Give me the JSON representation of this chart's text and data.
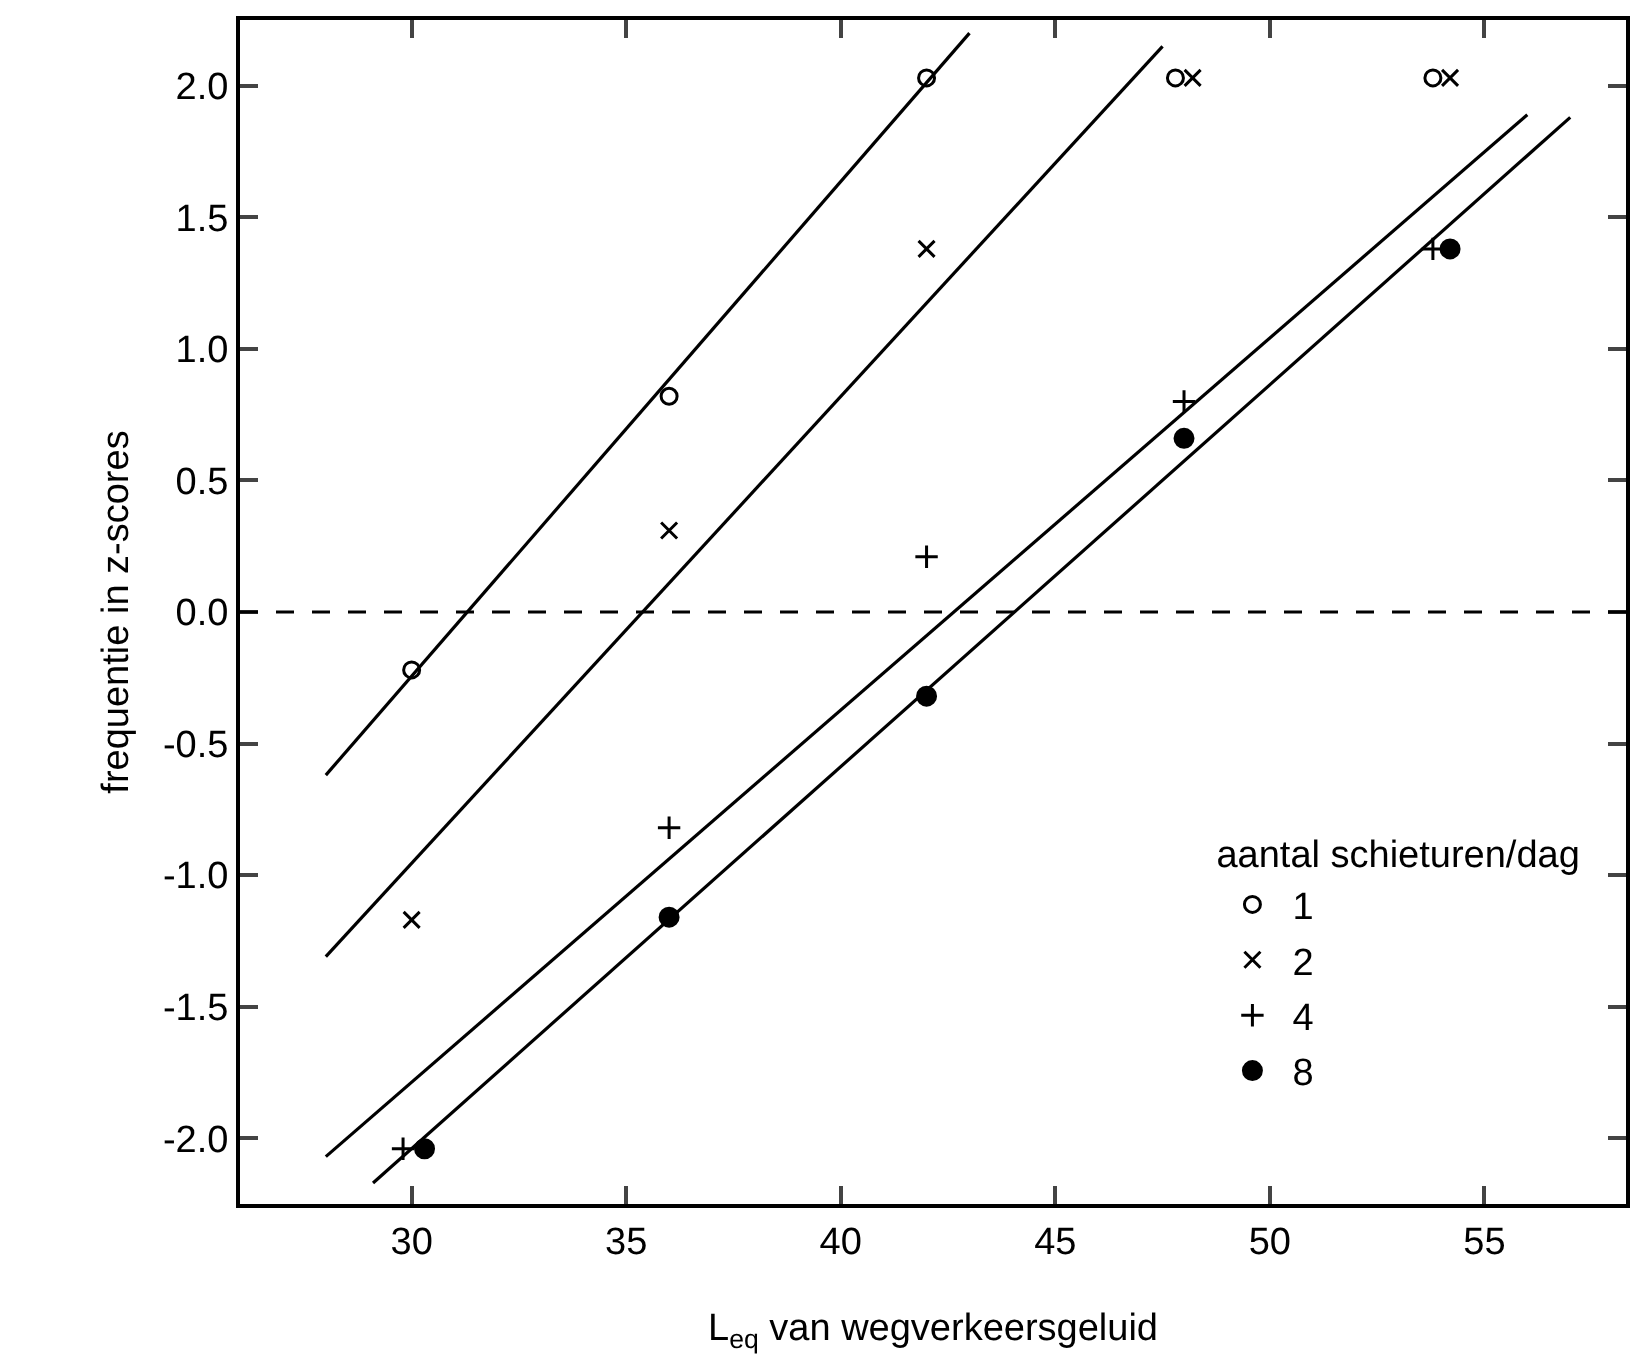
{
  "chart_data": {
    "type": "scatter",
    "xlabel": "L$_{eq}$ van wegverkeersgeluid",
    "ylabel": "frequentie in z-scores",
    "legend_title": "aantal schieturen/dag",
    "legend": "bottom right",
    "grid": false,
    "xlim": [
      26,
      58.3
    ],
    "xticks": [
      30,
      35,
      40,
      45,
      50,
      55
    ],
    "ylim": [
      -2.25,
      2.25
    ],
    "yticks": [
      {
        "value": -2,
        "label": "-2.0"
      },
      {
        "value": -1.5,
        "label": "-1.5"
      },
      {
        "value": -1,
        "label": "-1.0"
      },
      {
        "value": -0.5,
        "label": "-0.5"
      },
      {
        "value": 0,
        "label": "0.0"
      },
      {
        "value": 0.5,
        "label": "0.5"
      },
      {
        "value": 1,
        "label": "1.0"
      },
      {
        "value": 1.5,
        "label": "1.5"
      },
      {
        "value": 2,
        "label": "2.0"
      }
    ],
    "ref_lines": [
      {
        "axis": "y",
        "value": 0,
        "line_style": "dashed",
        "color": "#000000"
      }
    ],
    "series": [
      {
        "name": "1",
        "color": "#000000",
        "marker": "circle-open",
        "x": [
          30,
          36,
          42,
          47.8,
          53.8
        ],
        "values": [
          -0.22,
          0.82,
          2.03,
          2.03,
          2.03
        ]
      },
      {
        "name": "2",
        "color": "#000000",
        "marker": "x",
        "x": [
          30,
          36,
          42,
          48.2,
          54.2
        ],
        "values": [
          -1.17,
          0.31,
          1.38,
          2.03,
          2.03
        ]
      },
      {
        "name": "4",
        "color": "#000000",
        "marker": "cross",
        "x": [
          29.8,
          36,
          42,
          48,
          53.8
        ],
        "values": [
          -2.04,
          -0.82,
          0.21,
          0.8,
          1.38
        ]
      },
      {
        "name": "8",
        "color": "#000000",
        "marker": "circle",
        "x": [
          30.3,
          36,
          42,
          48,
          54.2
        ],
        "values": [
          -2.04,
          -1.16,
          -0.32,
          0.66,
          1.38
        ]
      },
      {
        "type": "line",
        "color": "#000000",
        "marker": "none",
        "line_style": "solid",
        "x": [
          28,
          43
        ],
        "values": [
          -0.62,
          2.2
        ]
      },
      {
        "type": "line",
        "color": "#000000",
        "marker": "none",
        "line_style": "solid",
        "x": [
          28,
          47.5
        ],
        "values": [
          -1.31,
          2.15
        ]
      },
      {
        "type": "line",
        "color": "#000000",
        "marker": "none",
        "line_style": "solid",
        "x": [
          28,
          56
        ],
        "values": [
          -2.07,
          1.89
        ]
      },
      {
        "type": "line",
        "color": "#000000",
        "marker": "none",
        "line_style": "solid",
        "x": [
          29.1,
          57
        ],
        "values": [
          -2.17,
          1.88
        ]
      }
    ]
  }
}
